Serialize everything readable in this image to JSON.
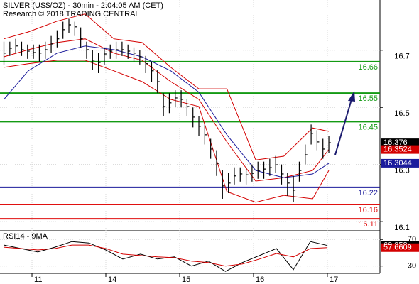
{
  "chart_data": [
    {
      "type": "ohlc",
      "title": "SILVER (US$/OZ) - 30min - 2:04:05 AM (CET)",
      "subtitle": "Research © 2018 TRADING CENTRAL",
      "xlim": [
        0.567,
        5.712
      ],
      "ylim": [
        16.068,
        16.876
      ],
      "yticks": [
        16.1,
        16.3,
        16.5,
        16.7
      ],
      "grid": true,
      "x": [
        0.62,
        0.7,
        0.78,
        0.86,
        0.94,
        1.02,
        1.1,
        1.18,
        1.26,
        1.34,
        1.42,
        1.5,
        1.58,
        1.66,
        1.74,
        1.82,
        1.9,
        1.98,
        2.06,
        2.14,
        2.22,
        2.3,
        2.38,
        2.46,
        2.54,
        2.62,
        2.7,
        2.78,
        2.86,
        2.94,
        3.02,
        3.1,
        3.18,
        3.26,
        3.34,
        3.42,
        3.5,
        3.58,
        3.66,
        3.74,
        3.82,
        3.9,
        3.98,
        4.06,
        4.14,
        4.22,
        4.3,
        4.38,
        4.46,
        4.54,
        4.62,
        4.7,
        4.78,
        4.86,
        4.94,
        5.02
      ],
      "high": [
        16.73,
        16.73,
        16.74,
        16.73,
        16.72,
        16.72,
        16.72,
        16.73,
        16.75,
        16.77,
        16.8,
        16.81,
        16.8,
        16.78,
        16.73,
        16.7,
        16.69,
        16.71,
        16.72,
        16.73,
        16.73,
        16.72,
        16.71,
        16.7,
        16.68,
        16.66,
        16.63,
        16.55,
        16.55,
        16.56,
        16.56,
        16.53,
        16.5,
        16.47,
        16.44,
        16.39,
        16.35,
        16.28,
        16.27,
        16.29,
        16.29,
        16.29,
        16.3,
        16.31,
        16.31,
        16.32,
        16.33,
        16.3,
        16.27,
        16.26,
        16.31,
        16.37,
        16.44,
        16.42,
        16.39,
        16.4
      ],
      "low": [
        16.65,
        16.68,
        16.69,
        16.68,
        16.67,
        16.67,
        16.66,
        16.67,
        16.69,
        16.71,
        16.74,
        16.76,
        16.75,
        16.71,
        16.67,
        16.63,
        16.62,
        16.65,
        16.67,
        16.67,
        16.68,
        16.67,
        16.66,
        16.65,
        16.62,
        16.59,
        16.55,
        16.47,
        16.48,
        16.5,
        16.5,
        16.47,
        16.43,
        16.4,
        16.37,
        16.32,
        16.26,
        16.18,
        16.2,
        16.23,
        16.24,
        16.23,
        16.24,
        16.25,
        16.25,
        16.26,
        16.27,
        16.23,
        16.19,
        16.17,
        16.24,
        16.3,
        16.37,
        16.35,
        16.32,
        16.34
      ],
      "close": [
        16.69,
        16.707,
        16.715,
        16.702,
        16.697,
        16.692,
        16.69,
        16.702,
        16.722,
        16.74,
        16.772,
        16.789,
        16.782,
        16.74,
        16.702,
        16.665,
        16.657,
        16.687,
        16.697,
        16.702,
        16.702,
        16.697,
        16.69,
        16.677,
        16.653,
        16.628,
        16.59,
        16.503,
        16.516,
        16.533,
        16.528,
        16.503,
        16.466,
        16.434,
        16.404,
        16.354,
        16.304,
        16.225,
        16.235,
        16.26,
        16.267,
        16.264,
        16.269,
        16.279,
        16.284,
        16.289,
        16.299,
        16.267,
        16.235,
        16.21,
        16.279,
        16.334,
        16.409,
        16.379,
        16.354,
        16.376
      ],
      "color": "#000000",
      "line_x": [
        0.62,
        0.95,
        1.34,
        1.72,
        2.11,
        2.49,
        2.88,
        3.26,
        3.64,
        4.03,
        4.41,
        4.8,
        5.02
      ],
      "lines": [
        {
          "color": "#d40000",
          "values": [
            16.74,
            16.764,
            16.802,
            16.827,
            16.74,
            16.727,
            16.64,
            16.565,
            16.565,
            16.316,
            16.329,
            16.428,
            16.416
          ]
        },
        {
          "color": "#d40000",
          "values": [
            16.64,
            16.653,
            16.665,
            16.665,
            16.628,
            16.59,
            16.528,
            16.503,
            16.205,
            16.168,
            16.192,
            16.18,
            16.279
          ]
        },
        {
          "color": "#d40000",
          "values": [
            16.677,
            16.702,
            16.727,
            16.74,
            16.69,
            16.665,
            16.59,
            16.528,
            16.379,
            16.242,
            16.254,
            16.279,
            16.3524
          ]
        },
        {
          "color": "#1c1c9c",
          "values": [
            16.528,
            16.628,
            16.69,
            16.715,
            16.702,
            16.677,
            16.628,
            16.553,
            16.404,
            16.279,
            16.254,
            16.267,
            16.3044
          ]
        }
      ],
      "levels": [
        {
          "value": 16.66,
          "color": "#139a13"
        },
        {
          "value": 16.55,
          "color": "#139a13"
        },
        {
          "value": 16.45,
          "color": "#139a13"
        },
        {
          "value": 16.22,
          "color": "#1c1c9c"
        },
        {
          "value": 16.16,
          "color": "#e01010"
        },
        {
          "value": 16.11,
          "color": "#e01010"
        }
      ]
    },
    {
      "type": "line",
      "title": "RSI14 - 9MA",
      "xlim": [
        0.567,
        5.712
      ],
      "xticks": [
        {
          "value": 1,
          "label": "11"
        },
        {
          "value": 2,
          "label": "14"
        },
        {
          "value": 3,
          "label": "15"
        },
        {
          "value": 4,
          "label": "16"
        },
        {
          "value": 5,
          "label": "17"
        }
      ],
      "ylim": [
        19,
        83
      ],
      "yticks": [
        30,
        70
      ],
      "grid": true,
      "x": [
        0.62,
        0.85,
        1.08,
        1.31,
        1.54,
        1.77,
        2.0,
        2.23,
        2.47,
        2.7,
        2.93,
        3.16,
        3.39,
        3.62,
        3.85,
        4.08,
        4.31,
        4.54,
        4.77,
        5.0
      ],
      "series": [
        {
          "color": "#000000",
          "values": [
            61.6,
            56.3,
            51.1,
            58.4,
            66.8,
            64.7,
            54.2,
            40.5,
            47.9,
            40.5,
            43.7,
            30,
            37.4,
            22,
            35.3,
            45.8,
            56.3,
            24.7,
            66.8,
            60.958
          ]
        },
        {
          "color": "#d40000",
          "values": [
            58.4,
            56.3,
            54.2,
            56.3,
            61.6,
            61.6,
            56.3,
            47.9,
            45.8,
            43.7,
            42.6,
            37.4,
            35.3,
            30,
            33.2,
            40.5,
            48.9,
            43.7,
            56.3,
            57.6609
          ]
        }
      ]
    }
  ]
}
